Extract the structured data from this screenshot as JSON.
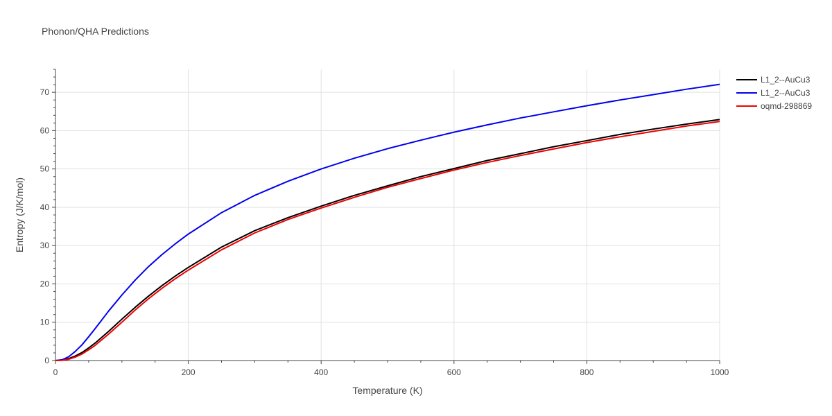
{
  "chart_data": {
    "type": "line",
    "title": "Phonon/QHA Predictions",
    "xlabel": "Temperature (K)",
    "ylabel": "Entropy (J/K/mol)",
    "xlim": [
      0,
      1000
    ],
    "ylim": [
      0,
      76
    ],
    "x_ticks": [
      0,
      200,
      400,
      600,
      800,
      1000
    ],
    "y_ticks": [
      0,
      10,
      20,
      30,
      40,
      50,
      60,
      70
    ],
    "grid": true,
    "legend": "top-right",
    "series": [
      {
        "name": "L1_2--AuCu3",
        "color": "#000000",
        "x": [
          0,
          10,
          20,
          30,
          40,
          50,
          60,
          80,
          100,
          120,
          140,
          160,
          180,
          200,
          250,
          300,
          350,
          400,
          450,
          500,
          550,
          600,
          650,
          700,
          750,
          800,
          850,
          900,
          950,
          1000
        ],
        "y": [
          0,
          0.1,
          0.5,
          1.2,
          2.1,
          3.3,
          4.6,
          7.6,
          10.8,
          13.9,
          16.8,
          19.5,
          22.0,
          24.3,
          29.6,
          33.9,
          37.3,
          40.3,
          43.1,
          45.6,
          48.0,
          50.1,
          52.2,
          54.0,
          55.8,
          57.4,
          59.0,
          60.4,
          61.7,
          62.9
        ]
      },
      {
        "name": "L1_2--AuCu3",
        "color": "#0000ee",
        "x": [
          0,
          10,
          20,
          30,
          40,
          50,
          60,
          80,
          100,
          120,
          140,
          160,
          180,
          200,
          250,
          300,
          350,
          400,
          450,
          500,
          550,
          600,
          650,
          700,
          750,
          800,
          850,
          900,
          950,
          1000
        ],
        "y": [
          0,
          0.2,
          1.0,
          2.4,
          4.1,
          6.2,
          8.4,
          12.9,
          17.1,
          21.0,
          24.5,
          27.6,
          30.4,
          33.0,
          38.6,
          43.1,
          46.8,
          50.0,
          52.8,
          55.3,
          57.5,
          59.6,
          61.5,
          63.3,
          64.9,
          66.5,
          68.0,
          69.4,
          70.8,
          72.1
        ]
      },
      {
        "name": "oqmd-298869",
        "color": "#ee0000",
        "x": [
          0,
          10,
          20,
          30,
          40,
          50,
          60,
          80,
          100,
          120,
          140,
          160,
          180,
          200,
          250,
          300,
          350,
          400,
          450,
          500,
          550,
          600,
          650,
          700,
          750,
          800,
          850,
          900,
          950,
          1000
        ],
        "y": [
          0,
          0.05,
          0.35,
          0.9,
          1.7,
          2.8,
          4.0,
          6.9,
          10.0,
          13.2,
          16.1,
          18.8,
          21.3,
          23.6,
          28.9,
          33.3,
          36.8,
          39.8,
          42.6,
          45.2,
          47.5,
          49.7,
          51.7,
          53.5,
          55.2,
          56.9,
          58.4,
          59.8,
          61.2,
          62.4
        ]
      }
    ]
  }
}
